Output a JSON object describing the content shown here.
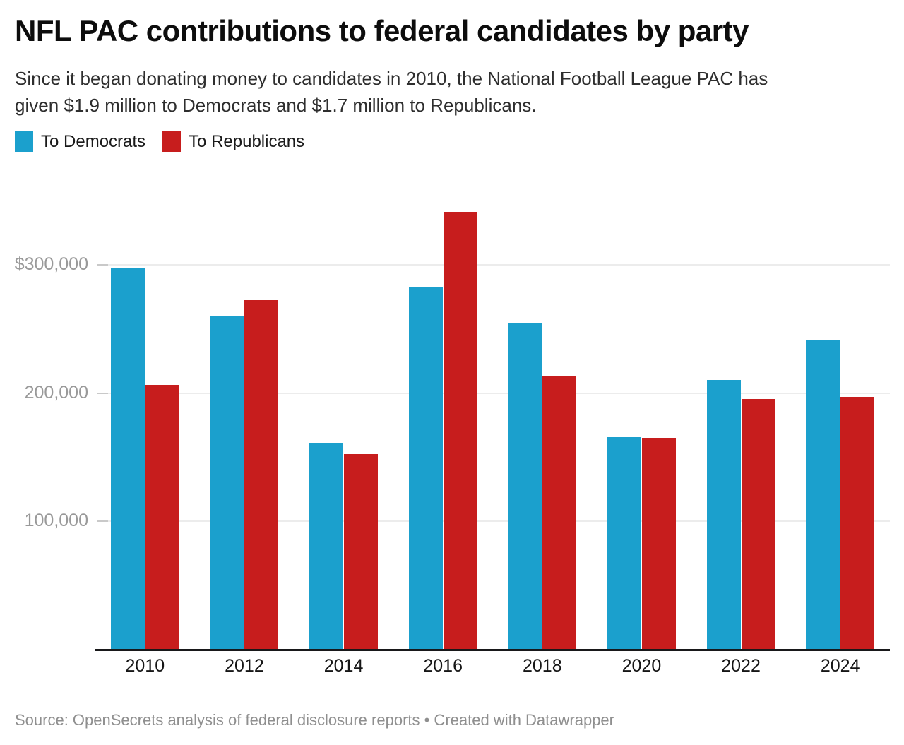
{
  "header": {
    "title": "NFL PAC contributions to federal candidates by party",
    "subtitle_lines": [
      "Since it began donating money to candidates in 2010, the National Football League PAC has",
      "given $1.9 million to Democrats and $1.7 million to Republicans."
    ]
  },
  "legend": {
    "items": [
      {
        "key": "democrats",
        "label": "To Democrats",
        "color": "#1BA0CD"
      },
      {
        "key": "republicans",
        "label": "To Republicans",
        "color": "#C71D1D"
      }
    ]
  },
  "chart_data": {
    "type": "bar",
    "title": "NFL PAC contributions to federal candidates by party",
    "categories": [
      "2010",
      "2012",
      "2014",
      "2016",
      "2018",
      "2020",
      "2022",
      "2024"
    ],
    "series": [
      {
        "name": "To Democrats",
        "key": "democrats",
        "color": "#1BA0CD",
        "values": [
          297500,
          260000,
          160500,
          282500,
          255000,
          165500,
          210500,
          242000
        ]
      },
      {
        "name": "To Republicans",
        "key": "republicans",
        "color": "#C71D1D",
        "values": [
          206500,
          272500,
          152500,
          341500,
          213000,
          165000,
          195500,
          197000
        ]
      }
    ],
    "xlabel": "",
    "ylabel": "",
    "ylim": [
      0,
      360000
    ],
    "y_ticks": [
      {
        "value": 300000,
        "label": "$300,000"
      },
      {
        "value": 200000,
        "label": "200,000"
      },
      {
        "value": 100000,
        "label": "100,000"
      }
    ],
    "grid": true,
    "legend_position": "top-left",
    "colors": {
      "axis_line": "#18181a",
      "gridline": "#ececec",
      "axis_text": "#999999"
    }
  },
  "footer": {
    "text": "Source: OpenSecrets analysis of federal disclosure reports • Created with Datawrapper"
  }
}
